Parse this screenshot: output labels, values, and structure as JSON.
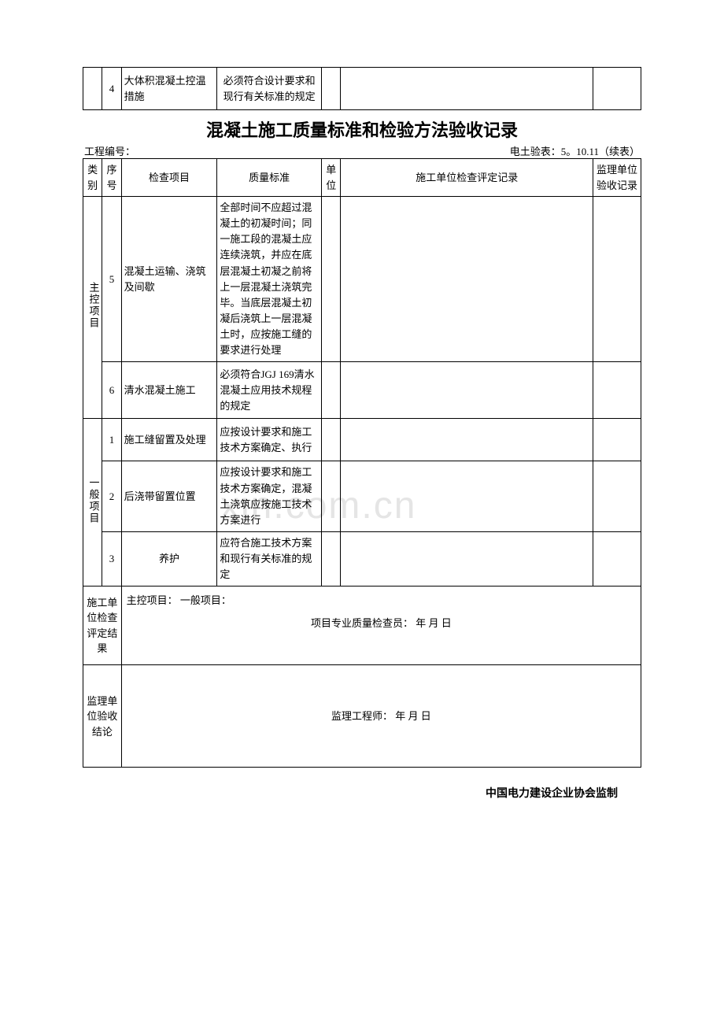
{
  "watermark": "xin.com.cn",
  "topTable": {
    "seq": "4",
    "item": "大体积混凝土控温措施",
    "standard": "必须符合设计要求和现行有关标准的规定"
  },
  "title": "混凝土施工质量标准和检验方法验收记录",
  "meta": {
    "left": "工程编号：",
    "right": "电土验表：5。10.11（续表）"
  },
  "headers": {
    "category": "类别",
    "seq": "序号",
    "item": "检查项目",
    "standard": "质量标准",
    "unit": "单位",
    "record": "施工单位检查评定记录",
    "sup": "监理单位验收记录"
  },
  "mainCategory": "主控项目",
  "generalCategory": "一般项目",
  "rows": {
    "r5": {
      "seq": "5",
      "item": "混凝土运输、浇筑及间歇",
      "standard": "全部时间不应超过混凝土的初凝时间；同一施工段的混凝土应连续浇筑，并应在底层混凝土初凝之前将上一层混凝土浇筑完毕。当底层混凝土初凝后浇筑上一层混凝土时，应按施工缝的要求进行处理"
    },
    "r6": {
      "seq": "6",
      "item": "清水混凝土施工",
      "standard": "必须符合JGJ 169清水混凝土应用技术规程的规定"
    },
    "g1": {
      "seq": "1",
      "item": "施工缝留置及处理",
      "standard": "应按设计要求和施工技术方案确定、执行"
    },
    "g2": {
      "seq": "2",
      "item": "后浇带留置位置",
      "standard": "应按设计要求和施工技术方案确定，混凝土浇筑应按施工技术方案进行"
    },
    "g3": {
      "seq": "3",
      "item": "养护",
      "standard": "应符合施工技术方案和现行有关标准的规定"
    }
  },
  "resultRow": {
    "label": "施工单位检查评定结果",
    "line1": "主控项目：    一般项目：",
    "line2": "项目专业质量检查员：       年 月 日"
  },
  "conclusionRow": {
    "label": "监理单位验收结论",
    "content": "监理工程师：        年 月 日"
  },
  "footer": "中国电力建设企业协会监制",
  "colors": {
    "border": "#000000",
    "background": "#ffffff",
    "watermark": "#e5e5e5"
  },
  "typography": {
    "body_font": "SimSun",
    "title_font": "SimHei",
    "body_fontsize": 13,
    "title_fontsize": 22
  }
}
